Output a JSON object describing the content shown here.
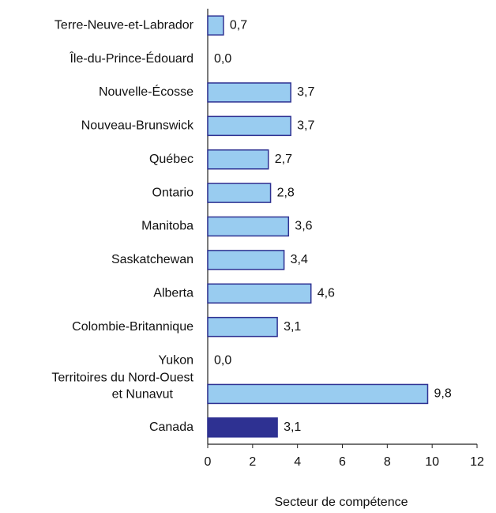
{
  "chart_data": {
    "type": "barh",
    "categories": [
      "Terre-Neuve-et-Labrador",
      "Île-du-Prince-Édouard",
      "Nouvelle-Écosse",
      "Nouveau-Brunswick",
      "Québec",
      "Ontario",
      "Manitoba",
      "Saskatchewan",
      "Alberta",
      "Colombie-Britannique",
      "Yukon",
      "Territoires du Nord-Ouest\net Nunavut",
      "Canada"
    ],
    "values": [
      0.7,
      0.0,
      3.7,
      3.7,
      2.7,
      2.8,
      3.6,
      3.4,
      4.6,
      3.1,
      0.0,
      9.8,
      3.1
    ],
    "value_labels": [
      "0,7",
      "0,0",
      "3,7",
      "3,7",
      "2,7",
      "2,8",
      "3,6",
      "3,4",
      "4,6",
      "3,1",
      "0,0",
      "9,8",
      "3,1"
    ],
    "colors": [
      "#99ccf0",
      "#99ccf0",
      "#99ccf0",
      "#99ccf0",
      "#99ccf0",
      "#99ccf0",
      "#99ccf0",
      "#99ccf0",
      "#99ccf0",
      "#99ccf0",
      "#99ccf0",
      "#99ccf0",
      "#2e3192"
    ],
    "xlim": [
      0,
      12
    ],
    "xticks": [
      0,
      2,
      4,
      6,
      8,
      10,
      12
    ],
    "xlabel": "Secteur de compétence"
  }
}
